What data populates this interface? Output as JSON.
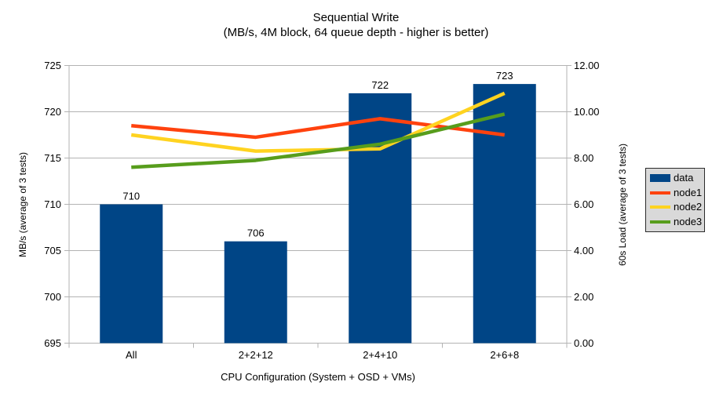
{
  "title": {
    "line1": "Sequential Write",
    "line2": "(MB/s, 4M block, 64 queue depth - higher is better)"
  },
  "chart_data": {
    "type": "bar",
    "subtype": "combo-bar-line-dual-axis",
    "title": "Sequential Write",
    "subtitle": "(MB/s, 4M block, 64 queue depth - higher is better)",
    "categories": [
      "All",
      "2+2+12",
      "2+4+10",
      "2+6+8"
    ],
    "bar_series": {
      "name": "data",
      "axis": "left",
      "color": "#004586",
      "values": [
        710,
        706,
        722,
        723
      ],
      "data_labels": [
        "710",
        "706",
        "722",
        "723"
      ]
    },
    "line_series": [
      {
        "name": "node1",
        "axis": "right",
        "color": "#ff420e",
        "values": [
          9.4,
          8.9,
          9.7,
          9.0
        ]
      },
      {
        "name": "node2",
        "axis": "right",
        "color": "#ffd320",
        "values": [
          9.0,
          8.3,
          8.4,
          10.8
        ]
      },
      {
        "name": "node3",
        "axis": "right",
        "color": "#579d1c",
        "values": [
          7.6,
          7.9,
          8.6,
          9.9
        ]
      }
    ],
    "left_axis": {
      "title": "MB/s (average of 3 tests)",
      "min": 695,
      "max": 725,
      "step": 5,
      "tick_labels": [
        "695",
        "700",
        "705",
        "710",
        "715",
        "720",
        "725"
      ]
    },
    "right_axis": {
      "title": "60s Load (average of 3 tests)",
      "min": 0,
      "max": 12,
      "step": 2,
      "tick_labels": [
        "0.00",
        "2.00",
        "4.00",
        "6.00",
        "8.00",
        "10.00",
        "12.00"
      ]
    },
    "x_axis": {
      "title": "CPU Configuration (System + OSD + VMs)"
    },
    "legend": {
      "position": "right",
      "entries": [
        "data",
        "node1",
        "node2",
        "node3"
      ]
    },
    "grid": "horizontal-only",
    "colors": {
      "grid": "#b3b3b3",
      "axis": "#b3b3b3",
      "text": "#000000",
      "background": "#ffffff",
      "legend_background": "#d9d9d9"
    }
  }
}
